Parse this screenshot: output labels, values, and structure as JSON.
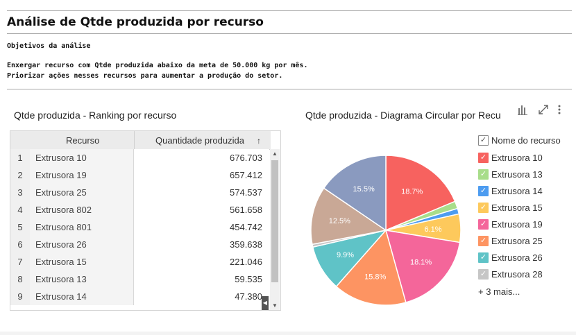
{
  "page": {
    "title": "Análise de Qtde produzida por recurso",
    "objectives_heading": "Objetivos da análise",
    "objective_line1": "Enxergar recurso com Qtde produzida abaixo da meta de 50.000 kg por mês.",
    "objective_line2": "Priorizar ações nesses recursos para aumentar a produção do setor."
  },
  "table_panel": {
    "title": "Qtde produzida - Ranking por recurso",
    "columns": [
      "Recurso",
      "Quantidade produzida"
    ],
    "sort_icon": "sort-arrow-up-icon",
    "rows": [
      {
        "n": "1",
        "recurso": "Extrusora 10",
        "qtd": "676.703"
      },
      {
        "n": "2",
        "recurso": "Extrusora 19",
        "qtd": "657.412"
      },
      {
        "n": "3",
        "recurso": "Extrusora 25",
        "qtd": "574.537"
      },
      {
        "n": "4",
        "recurso": "Extrusora 802",
        "qtd": "561.658"
      },
      {
        "n": "5",
        "recurso": "Extrusora 801",
        "qtd": "454.742"
      },
      {
        "n": "6",
        "recurso": "Extrusora 26",
        "qtd": "359.638"
      },
      {
        "n": "7",
        "recurso": "Extrusora 15",
        "qtd": "221.046"
      },
      {
        "n": "8",
        "recurso": "Extrusora 13",
        "qtd": "59.535"
      },
      {
        "n": "9",
        "recurso": "Extrusora 14",
        "qtd": "47.380"
      }
    ]
  },
  "chart_panel": {
    "title": "Qtde produzida - Diagrama Circular por Recu",
    "toolbar_icons": [
      "bar-chart-icon",
      "expand-icon",
      "more-vertical-icon"
    ],
    "legend_title": "Nome do recurso",
    "legend_more": "+ 3 mais..."
  },
  "chart_data": {
    "type": "pie",
    "slices": [
      {
        "name": "Extrusora 10",
        "value": 18.7,
        "label": "18.7%",
        "color": "#f7625f"
      },
      {
        "name": "Extrusora 13",
        "value": 1.6,
        "label": "",
        "color": "#a8dd8a"
      },
      {
        "name": "Extrusora 14",
        "value": 1.2,
        "label": "",
        "color": "#4d9cf0"
      },
      {
        "name": "Extrusora 15",
        "value": 6.1,
        "label": "6.1%",
        "color": "#fdc95c"
      },
      {
        "name": "Extrusora 19",
        "value": 18.1,
        "label": "18.1%",
        "color": "#f4669a"
      },
      {
        "name": "Extrusora 25",
        "value": 15.8,
        "label": "15.8%",
        "color": "#fd9462"
      },
      {
        "name": "Extrusora 26",
        "value": 9.9,
        "label": "9.9%",
        "color": "#5fc3c7"
      },
      {
        "name": "Extrusora 28",
        "value": 0.6,
        "label": "",
        "color": "#c6c6c6"
      },
      {
        "name": "",
        "value": 12.5,
        "label": "12.5%",
        "color": "#c9a896"
      },
      {
        "name": "",
        "value": 15.5,
        "label": "15.5%",
        "color": "#8a9abf"
      }
    ]
  }
}
